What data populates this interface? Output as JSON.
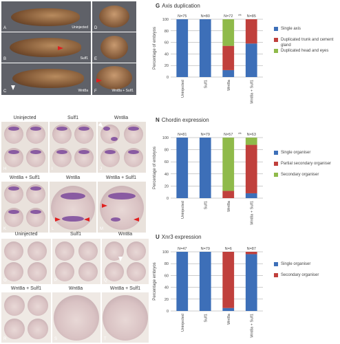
{
  "labels": {
    "A": "A",
    "B": "B",
    "C": "C",
    "D": "D",
    "E": "E",
    "F": "F",
    "H": "H",
    "I": "I",
    "J": "J",
    "K": "K",
    "L": "L",
    "M": "M",
    "O": "O",
    "P": "P",
    "Q": "Q",
    "R": "R",
    "S": "S",
    "T": "T"
  },
  "panel_text": {
    "uninjected": "Uninjected",
    "sulf1": "Sulf1",
    "wnt8a": "Wnt8a",
    "wnt8a_sulf1": "Wnt8a + Sulf1"
  },
  "colors": {
    "blue": "#3d6fb8",
    "red": "#c0403c",
    "green": "#8fba4a",
    "grid": "#9a9a9a"
  },
  "chart_data": [
    {
      "type": "bar",
      "letter": "G",
      "title": "Axis duplication",
      "ylabel": "Percentage of embryos",
      "ylim": [
        0,
        100
      ],
      "yticks": [
        0,
        20,
        40,
        60,
        80,
        100
      ],
      "categories": [
        "Uninjected",
        "Sulf1",
        "Wnt8a",
        "Wnt8a + Sulf1"
      ],
      "n_labels": [
        "N=75",
        "N=80",
        "N=72",
        "N=85"
      ],
      "significance": "**",
      "series": [
        {
          "name": "Single axis",
          "color": "#3d6fb8",
          "values": [
            100,
            100,
            12,
            58
          ]
        },
        {
          "name": "Duplicated trunk and cement gland",
          "color": "#c0403c",
          "values": [
            0,
            0,
            42,
            42
          ]
        },
        {
          "name": "Duplicated head and eyes",
          "color": "#8fba4a",
          "values": [
            0,
            0,
            46,
            0
          ]
        }
      ]
    },
    {
      "type": "bar",
      "letter": "N",
      "title": "Chordin expression",
      "ylabel": "Percentage of embryos",
      "ylim": [
        0,
        100
      ],
      "yticks": [
        0,
        20,
        40,
        60,
        80,
        100
      ],
      "categories": [
        "Uninjected",
        "Sulf1",
        "Wnt8a",
        "Wnt8a + Sulf1"
      ],
      "n_labels": [
        "N=81",
        "N=79",
        "N=57",
        "N=63"
      ],
      "significance": "**",
      "series": [
        {
          "name": "Single organiser",
          "color": "#3d6fb8",
          "values": [
            100,
            100,
            0,
            8
          ]
        },
        {
          "name": "Partial secondary organiser",
          "color": "#c0403c",
          "values": [
            0,
            0,
            12,
            80
          ]
        },
        {
          "name": "Secondary organiser",
          "color": "#8fba4a",
          "values": [
            0,
            0,
            88,
            12
          ]
        }
      ]
    },
    {
      "type": "bar",
      "letter": "U",
      "title": "Xnr3 expression",
      "ylabel": "Percentage embryos",
      "ylim": [
        0,
        100
      ],
      "yticks": [
        0,
        20,
        40,
        60,
        80,
        100
      ],
      "categories": [
        "Uninjected",
        "Sulf1",
        "Wnt8a",
        "Wnt8a + Sulf1"
      ],
      "n_labels": [
        "N=47",
        "N=79",
        "N=6",
        "N=87"
      ],
      "significance": "",
      "series": [
        {
          "name": "Single organiser",
          "color": "#3d6fb8",
          "values": [
            100,
            100,
            5,
            96
          ]
        },
        {
          "name": "Secondary organiser",
          "color": "#c0403c",
          "values": [
            0,
            0,
            95,
            4
          ]
        }
      ]
    }
  ]
}
